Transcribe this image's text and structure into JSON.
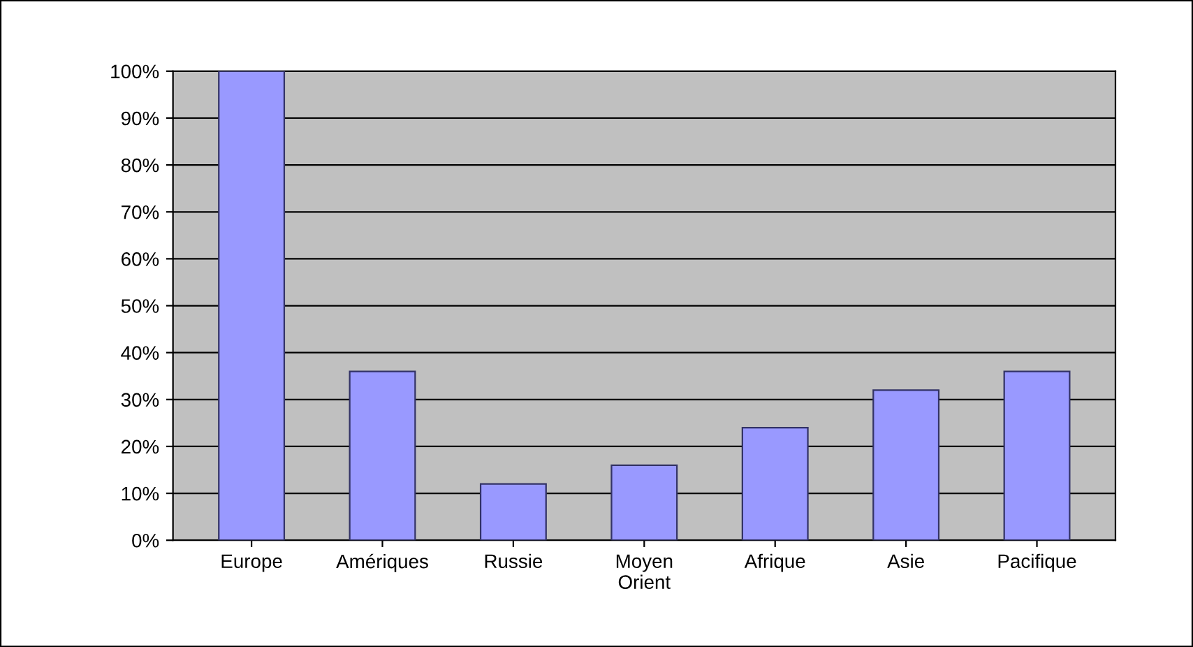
{
  "chart_data": {
    "type": "bar",
    "categories": [
      "Europe",
      "Amériques",
      "Russie",
      "Moyen\nOrient",
      "Afrique",
      "Asie",
      "Pacifique"
    ],
    "values": [
      100,
      36,
      12,
      16,
      24,
      32,
      36
    ],
    "color": "#9999ff",
    "ylim": [
      0,
      100
    ],
    "yticks": [
      {
        "value": 0,
        "label": "0%"
      },
      {
        "value": 10,
        "label": "10%"
      },
      {
        "value": 20,
        "label": "20%"
      },
      {
        "value": 30,
        "label": "30%"
      },
      {
        "value": 40,
        "label": "40%"
      },
      {
        "value": 50,
        "label": "50%"
      },
      {
        "value": 60,
        "label": "60%"
      },
      {
        "value": 70,
        "label": "70%"
      },
      {
        "value": 80,
        "label": "80%"
      },
      {
        "value": 90,
        "label": "90%"
      },
      {
        "value": 100,
        "label": "100%"
      }
    ],
    "grid": "y"
  }
}
